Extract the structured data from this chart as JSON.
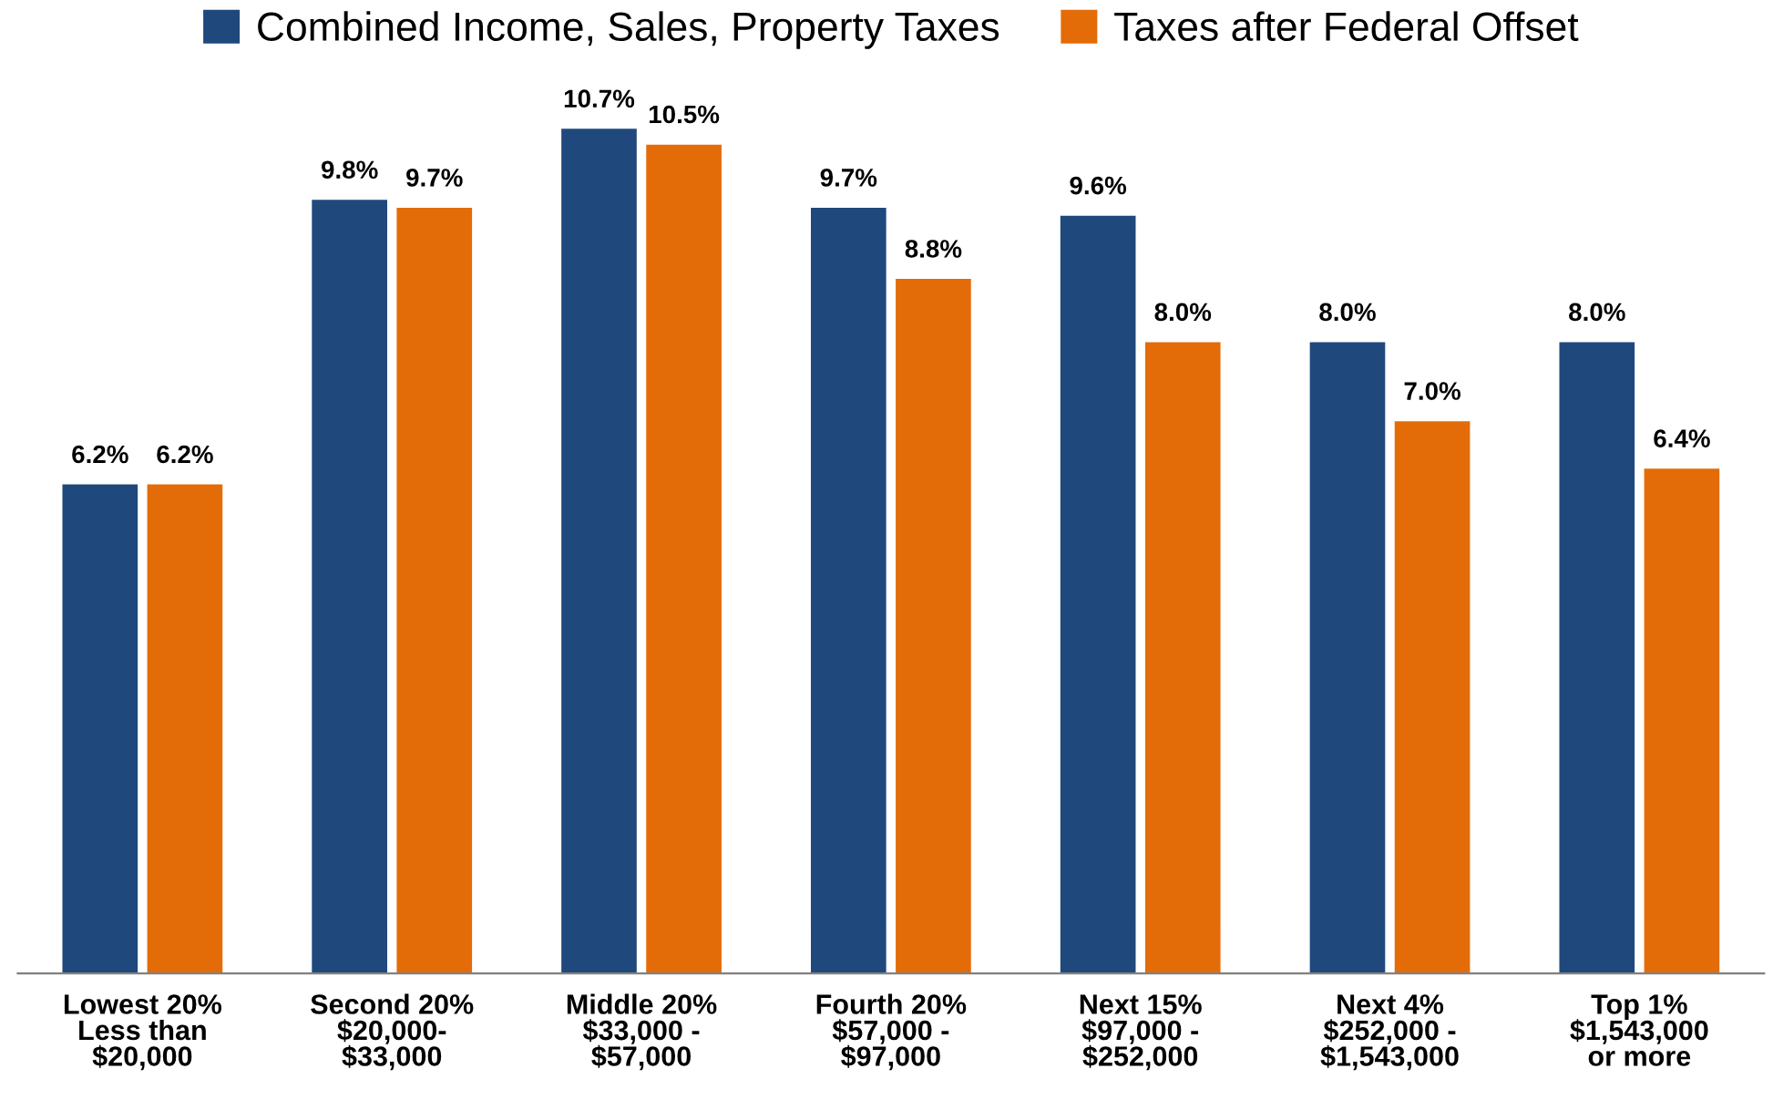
{
  "chart_data": {
    "type": "bar",
    "categories": [
      "Lowest 20%\nLess than\n$20,000",
      "Second 20%\n$20,000-\n$33,000",
      "Middle 20%\n$33,000 -\n$57,000",
      "Fourth 20%\n$57,000 -\n$97,000",
      "Next 15%\n$97,000 -\n$252,000",
      "Next 4%\n$252,000 -\n$1,543,000",
      "Top 1%\n$1,543,000\nor more"
    ],
    "series": [
      {
        "name": "Combined Income, Sales, Property Taxes",
        "color": "#1f497d",
        "values": [
          6.2,
          9.8,
          10.7,
          9.7,
          9.6,
          8.0,
          8.0
        ],
        "value_labels": [
          "6.2%",
          "9.8%",
          "10.7%",
          "9.7%",
          "9.6%",
          "8.0%",
          "8.0%"
        ]
      },
      {
        "name": "Taxes after Federal Offset",
        "color": "#e36c09",
        "values": [
          6.2,
          9.7,
          10.5,
          8.8,
          8.0,
          7.0,
          6.4
        ],
        "value_labels": [
          "6.2%",
          "9.7%",
          "10.5%",
          "8.8%",
          "8.0%",
          "7.0%",
          "6.4%"
        ]
      }
    ],
    "legend": "top",
    "grid": false
  }
}
